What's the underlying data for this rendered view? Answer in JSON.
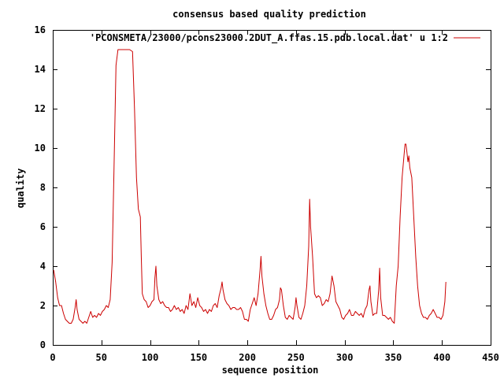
{
  "chart_data": {
    "type": "line",
    "title": "consensus based quality prediction",
    "xlabel": "sequence position",
    "ylabel": "quality",
    "xlim": [
      0,
      450
    ],
    "ylim": [
      0,
      16
    ],
    "xticks": [
      0,
      50,
      100,
      150,
      200,
      250,
      300,
      350,
      400,
      450
    ],
    "yticks": [
      0,
      2,
      4,
      6,
      8,
      10,
      12,
      14,
      16
    ],
    "grid": false,
    "legend_position": "top-right",
    "series": [
      {
        "name": "'PCONSMETA/23000/pcons23000.2DUT_A.ffas.15.pdb.local.dat' u 1:2",
        "color": "#cc0000",
        "points": [
          [
            1,
            3.8
          ],
          [
            3,
            3.2
          ],
          [
            5,
            2.4
          ],
          [
            7,
            2.0
          ],
          [
            9,
            2.0
          ],
          [
            11,
            1.6
          ],
          [
            13,
            1.3
          ],
          [
            15,
            1.2
          ],
          [
            17,
            1.1
          ],
          [
            19,
            1.1
          ],
          [
            21,
            1.3
          ],
          [
            23,
            1.9
          ],
          [
            24,
            2.3
          ],
          [
            25,
            1.8
          ],
          [
            27,
            1.3
          ],
          [
            29,
            1.2
          ],
          [
            31,
            1.1
          ],
          [
            33,
            1.2
          ],
          [
            35,
            1.1
          ],
          [
            37,
            1.4
          ],
          [
            39,
            1.7
          ],
          [
            41,
            1.4
          ],
          [
            43,
            1.5
          ],
          [
            45,
            1.4
          ],
          [
            47,
            1.6
          ],
          [
            49,
            1.5
          ],
          [
            51,
            1.7
          ],
          [
            53,
            1.8
          ],
          [
            55,
            2.0
          ],
          [
            57,
            1.9
          ],
          [
            59,
            2.3
          ],
          [
            61,
            4.2
          ],
          [
            63,
            9.0
          ],
          [
            65,
            14.2
          ],
          [
            67,
            15.0
          ],
          [
            70,
            15.0
          ],
          [
            73,
            15.0
          ],
          [
            76,
            15.0
          ],
          [
            79,
            15.0
          ],
          [
            82,
            14.9
          ],
          [
            84,
            12.0
          ],
          [
            86,
            8.5
          ],
          [
            88,
            6.9
          ],
          [
            90,
            6.5
          ],
          [
            91,
            4.5
          ],
          [
            92,
            2.6
          ],
          [
            94,
            2.3
          ],
          [
            96,
            2.2
          ],
          [
            98,
            1.9
          ],
          [
            100,
            2.0
          ],
          [
            102,
            2.2
          ],
          [
            104,
            2.3
          ],
          [
            105,
            3.4
          ],
          [
            106,
            4.0
          ],
          [
            107,
            3.0
          ],
          [
            109,
            2.3
          ],
          [
            111,
            2.1
          ],
          [
            113,
            2.2
          ],
          [
            115,
            2.0
          ],
          [
            117,
            1.9
          ],
          [
            119,
            1.9
          ],
          [
            121,
            1.7
          ],
          [
            123,
            1.8
          ],
          [
            125,
            2.0
          ],
          [
            127,
            1.8
          ],
          [
            129,
            1.9
          ],
          [
            131,
            1.7
          ],
          [
            133,
            1.8
          ],
          [
            135,
            1.6
          ],
          [
            137,
            2.0
          ],
          [
            139,
            1.8
          ],
          [
            141,
            2.6
          ],
          [
            143,
            2.0
          ],
          [
            145,
            2.2
          ],
          [
            147,
            1.9
          ],
          [
            149,
            2.4
          ],
          [
            151,
            2.0
          ],
          [
            153,
            1.9
          ],
          [
            155,
            1.7
          ],
          [
            157,
            1.8
          ],
          [
            159,
            1.6
          ],
          [
            161,
            1.8
          ],
          [
            163,
            1.7
          ],
          [
            165,
            2.0
          ],
          [
            167,
            2.1
          ],
          [
            169,
            1.9
          ],
          [
            171,
            2.5
          ],
          [
            173,
            2.9
          ],
          [
            174,
            3.2
          ],
          [
            175,
            2.8
          ],
          [
            177,
            2.3
          ],
          [
            179,
            2.1
          ],
          [
            181,
            2.0
          ],
          [
            183,
            1.8
          ],
          [
            185,
            1.9
          ],
          [
            187,
            1.9
          ],
          [
            189,
            1.8
          ],
          [
            191,
            1.8
          ],
          [
            193,
            1.9
          ],
          [
            195,
            1.7
          ],
          [
            197,
            1.3
          ],
          [
            199,
            1.3
          ],
          [
            201,
            1.2
          ],
          [
            203,
            1.8
          ],
          [
            205,
            2.1
          ],
          [
            207,
            2.4
          ],
          [
            209,
            2.0
          ],
          [
            211,
            2.6
          ],
          [
            213,
            3.8
          ],
          [
            214,
            4.5
          ],
          [
            215,
            3.5
          ],
          [
            217,
            2.6
          ],
          [
            219,
            2.0
          ],
          [
            221,
            1.6
          ],
          [
            223,
            1.3
          ],
          [
            225,
            1.3
          ],
          [
            227,
            1.5
          ],
          [
            229,
            1.8
          ],
          [
            231,
            1.9
          ],
          [
            233,
            2.3
          ],
          [
            234,
            2.9
          ],
          [
            235,
            2.8
          ],
          [
            237,
            2.0
          ],
          [
            239,
            1.4
          ],
          [
            241,
            1.3
          ],
          [
            243,
            1.5
          ],
          [
            245,
            1.4
          ],
          [
            247,
            1.3
          ],
          [
            249,
            1.9
          ],
          [
            250,
            2.4
          ],
          [
            251,
            2.0
          ],
          [
            253,
            1.4
          ],
          [
            255,
            1.3
          ],
          [
            257,
            1.6
          ],
          [
            259,
            2.0
          ],
          [
            261,
            3.0
          ],
          [
            263,
            5.0
          ],
          [
            264,
            7.4
          ],
          [
            265,
            6.0
          ],
          [
            267,
            4.5
          ],
          [
            269,
            2.6
          ],
          [
            271,
            2.4
          ],
          [
            273,
            2.5
          ],
          [
            275,
            2.4
          ],
          [
            277,
            2.0
          ],
          [
            279,
            2.1
          ],
          [
            281,
            2.3
          ],
          [
            283,
            2.2
          ],
          [
            285,
            2.6
          ],
          [
            287,
            3.5
          ],
          [
            289,
            3.0
          ],
          [
            291,
            2.2
          ],
          [
            293,
            2.0
          ],
          [
            295,
            1.8
          ],
          [
            297,
            1.4
          ],
          [
            299,
            1.3
          ],
          [
            301,
            1.5
          ],
          [
            303,
            1.6
          ],
          [
            305,
            1.8
          ],
          [
            307,
            1.5
          ],
          [
            309,
            1.5
          ],
          [
            311,
            1.7
          ],
          [
            313,
            1.6
          ],
          [
            315,
            1.5
          ],
          [
            317,
            1.6
          ],
          [
            319,
            1.4
          ],
          [
            321,
            1.8
          ],
          [
            323,
            2.0
          ],
          [
            325,
            2.8
          ],
          [
            326,
            3.0
          ],
          [
            327,
            2.2
          ],
          [
            329,
            1.5
          ],
          [
            331,
            1.6
          ],
          [
            333,
            1.6
          ],
          [
            335,
            2.8
          ],
          [
            336,
            3.9
          ],
          [
            337,
            2.4
          ],
          [
            339,
            1.5
          ],
          [
            341,
            1.5
          ],
          [
            343,
            1.4
          ],
          [
            345,
            1.3
          ],
          [
            347,
            1.4
          ],
          [
            349,
            1.2
          ],
          [
            351,
            1.1
          ],
          [
            353,
            3.0
          ],
          [
            355,
            4.0
          ],
          [
            357,
            6.5
          ],
          [
            359,
            8.5
          ],
          [
            361,
            9.6
          ],
          [
            362,
            10.2
          ],
          [
            363,
            10.2
          ],
          [
            364,
            9.8
          ],
          [
            365,
            9.3
          ],
          [
            366,
            9.6
          ],
          [
            367,
            9.0
          ],
          [
            369,
            8.5
          ],
          [
            371,
            6.5
          ],
          [
            373,
            4.5
          ],
          [
            375,
            3.0
          ],
          [
            377,
            2.0
          ],
          [
            379,
            1.6
          ],
          [
            381,
            1.4
          ],
          [
            383,
            1.4
          ],
          [
            385,
            1.3
          ],
          [
            387,
            1.5
          ],
          [
            389,
            1.6
          ],
          [
            391,
            1.8
          ],
          [
            393,
            1.6
          ],
          [
            395,
            1.4
          ],
          [
            397,
            1.4
          ],
          [
            399,
            1.3
          ],
          [
            401,
            1.5
          ],
          [
            403,
            2.2
          ],
          [
            404,
            3.2
          ]
        ]
      }
    ]
  }
}
